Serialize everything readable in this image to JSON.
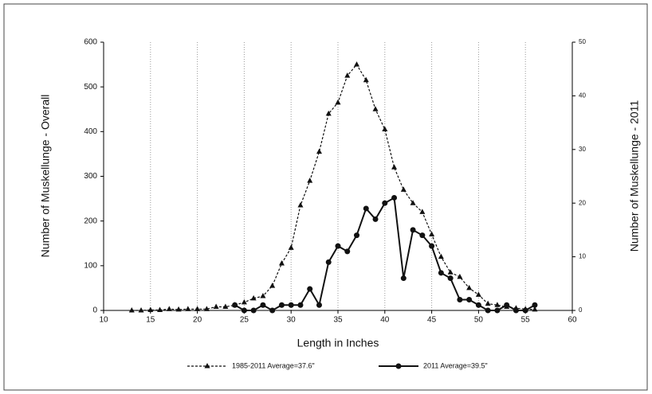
{
  "chart_data": {
    "type": "line",
    "xlabel": "Length in Inches",
    "ylabel": "Number of Muskellunge - Overall",
    "y2label": "Number of Muskellunge - 2011",
    "x": [
      13,
      14,
      15,
      16,
      17,
      18,
      19,
      20,
      21,
      22,
      23,
      24,
      25,
      26,
      27,
      28,
      29,
      30,
      31,
      32,
      33,
      34,
      35,
      36,
      37,
      38,
      39,
      40,
      41,
      42,
      43,
      44,
      45,
      46,
      47,
      48,
      49,
      50,
      51,
      52,
      53,
      54,
      55,
      56
    ],
    "series": [
      {
        "name": "1985-2011 Average=37.6\"",
        "color": "#111111",
        "dash": true,
        "marker": "triangle",
        "values": [
          0,
          0,
          1,
          1,
          3,
          2,
          3,
          3,
          3,
          8,
          8,
          12,
          18,
          27,
          32,
          55,
          105,
          140,
          235,
          290,
          355,
          440,
          465,
          525,
          550,
          515,
          450,
          405,
          320,
          270,
          240,
          220,
          170,
          120,
          85,
          75,
          50,
          35,
          15,
          12,
          8,
          5,
          3,
          2
        ]
      },
      {
        "name": "2011 Average=39.5\"",
        "color": "#111111",
        "dash": false,
        "marker": "circle",
        "axis": "y2",
        "values": [
          null,
          null,
          null,
          null,
          null,
          null,
          null,
          null,
          null,
          null,
          null,
          1,
          0,
          0,
          1,
          0,
          1,
          1,
          1,
          4,
          1,
          9,
          12,
          11,
          14,
          19,
          17,
          20,
          21,
          6,
          15,
          14,
          12,
          7,
          6,
          2,
          2,
          1,
          0,
          0,
          1,
          0,
          0,
          1
        ]
      }
    ],
    "xlim": [
      10,
      60
    ],
    "xticks": [
      10,
      15,
      20,
      25,
      30,
      35,
      40,
      45,
      50,
      55,
      60
    ],
    "ylim": [
      0,
      600
    ],
    "yticks": [
      0,
      100,
      200,
      300,
      400,
      500,
      600
    ],
    "y2lim": [
      0,
      50
    ],
    "y2ticks": [
      0,
      10,
      20,
      30,
      40,
      50
    ],
    "grid": "x",
    "legend": "bottom"
  }
}
